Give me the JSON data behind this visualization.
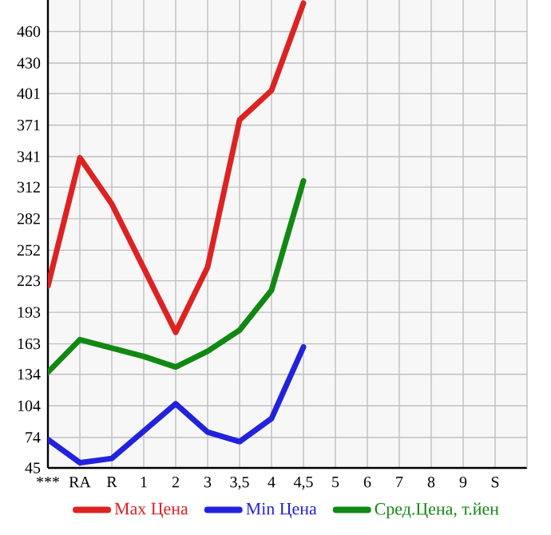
{
  "chart_data": {
    "type": "line",
    "categories": [
      "***",
      "RA",
      "R",
      "1",
      "2",
      "3",
      "3,5",
      "4",
      "4,5",
      "5",
      "6",
      "7",
      "8",
      "9",
      "S"
    ],
    "series": [
      {
        "name": "Max Цена",
        "color": "#dd2222",
        "values": [
          218,
          340,
          296,
          235,
          174,
          236,
          376,
          404,
          487,
          null,
          null,
          null,
          null,
          null,
          null
        ]
      },
      {
        "name": "Min Цена",
        "color": "#2222dd",
        "values": [
          72,
          50,
          54,
          80,
          106,
          79,
          70,
          92,
          160,
          null,
          null,
          null,
          null,
          null,
          null
        ]
      },
      {
        "name": "Сред.Цена, т.йен",
        "color": "#118811",
        "values": [
          136,
          167,
          159,
          151,
          141,
          156,
          176,
          214,
          318,
          null,
          null,
          null,
          null,
          null,
          null
        ]
      }
    ],
    "ylim": [
      45,
      490
    ],
    "yticks": [
      45,
      74,
      104,
      134,
      163,
      193,
      223,
      252,
      282,
      312,
      341,
      371,
      401,
      430,
      460
    ],
    "grid": true,
    "legend": "bottom",
    "marker": "none",
    "line_style": "solid"
  }
}
